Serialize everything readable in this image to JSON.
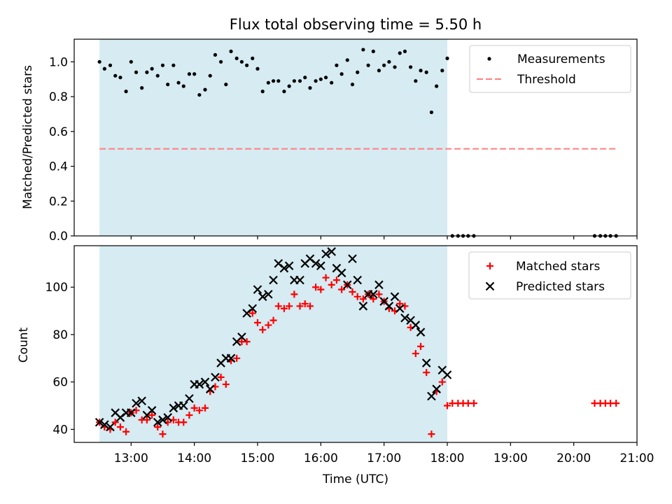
{
  "colors": {
    "shade": "#add8e6",
    "measurement": "#000000",
    "threshold": "#ff7f7f",
    "matched": "#ff0000",
    "predicted": "#000000"
  },
  "chart_data": [
    {
      "type": "scatter",
      "title": "Flux total observing time = 5.50 h",
      "xlabel": "",
      "ylabel": "Matched/Predicted stars",
      "xlim": [
        12.1,
        21.0
      ],
      "ylim": [
        0.0,
        1.13
      ],
      "yticks": [
        "0.0",
        "0.2",
        "0.4",
        "0.6",
        "0.8",
        "1.0"
      ],
      "observing_window": [
        12.5,
        18.0
      ],
      "threshold": {
        "name": "Threshold",
        "value": 0.5,
        "x_range": [
          12.5,
          20.67
        ]
      },
      "legend": [
        "Measurements",
        "Threshold"
      ],
      "series": [
        {
          "name": "Measurements",
          "x": [
            12.5,
            12.58,
            12.67,
            12.75,
            12.83,
            12.92,
            13.0,
            13.08,
            13.17,
            13.25,
            13.33,
            13.42,
            13.5,
            13.58,
            13.67,
            13.75,
            13.83,
            13.92,
            14.0,
            14.08,
            14.17,
            14.25,
            14.33,
            14.42,
            14.5,
            14.58,
            14.67,
            14.75,
            14.83,
            14.92,
            15.0,
            15.08,
            15.17,
            15.25,
            15.33,
            15.42,
            15.5,
            15.58,
            15.67,
            15.75,
            15.83,
            15.92,
            16.0,
            16.08,
            16.17,
            16.25,
            16.33,
            16.42,
            16.5,
            16.58,
            16.67,
            16.75,
            16.83,
            16.92,
            17.0,
            17.08,
            17.17,
            17.25,
            17.33,
            17.42,
            17.5,
            17.58,
            17.67,
            17.75,
            17.83,
            17.92,
            18.0,
            18.08,
            18.17,
            18.25,
            18.33,
            18.42,
            20.33,
            20.42,
            20.5,
            20.58,
            20.67
          ],
          "y": [
            1.0,
            0.96,
            0.98,
            0.92,
            0.91,
            0.83,
            1.0,
            0.94,
            0.85,
            0.94,
            0.96,
            0.92,
            0.98,
            0.87,
            0.98,
            0.88,
            0.86,
            0.93,
            0.93,
            0.81,
            0.84,
            0.92,
            1.04,
            1.0,
            0.87,
            1.06,
            1.02,
            1.0,
            0.98,
            1.02,
            0.96,
            0.83,
            0.88,
            0.89,
            0.89,
            0.83,
            0.86,
            0.89,
            0.89,
            0.91,
            0.85,
            0.89,
            0.9,
            0.91,
            0.88,
            0.98,
            0.93,
            1.01,
            0.87,
            0.94,
            1.07,
            0.98,
            1.06,
            0.95,
            0.98,
            1.0,
            0.97,
            1.05,
            1.06,
            0.97,
            0.89,
            0.95,
            0.94,
            0.71,
            0.86,
            0.95,
            1.02,
            0.0,
            0.0,
            0.0,
            0.0,
            0.0,
            0.0,
            0.0,
            0.0,
            0.0,
            0.0
          ]
        }
      ]
    },
    {
      "type": "scatter",
      "title": "",
      "xlabel": "Time (UTC)",
      "ylabel": "Count",
      "xlim": [
        12.1,
        21.0
      ],
      "ylim": [
        34.5,
        117.5
      ],
      "yticks": [
        "40",
        "60",
        "80",
        "100"
      ],
      "xticks": [
        "13:00",
        "14:00",
        "15:00",
        "16:00",
        "17:00",
        "18:00",
        "19:00",
        "20:00",
        "21:00"
      ],
      "observing_window": [
        12.5,
        18.0
      ],
      "legend": [
        "Matched stars",
        "Predicted stars"
      ],
      "series": [
        {
          "name": "Matched stars",
          "marker": "+",
          "x": [
            12.5,
            12.58,
            12.67,
            12.75,
            12.83,
            12.92,
            13.0,
            13.08,
            13.17,
            13.25,
            13.33,
            13.42,
            13.5,
            13.58,
            13.67,
            13.75,
            13.83,
            13.92,
            14.0,
            14.08,
            14.17,
            14.25,
            14.33,
            14.42,
            14.5,
            14.58,
            14.67,
            14.75,
            14.83,
            14.92,
            15.0,
            15.08,
            15.17,
            15.25,
            15.33,
            15.42,
            15.5,
            15.58,
            15.67,
            15.75,
            15.83,
            15.92,
            16.0,
            16.08,
            16.17,
            16.25,
            16.33,
            16.42,
            16.5,
            16.58,
            16.67,
            16.75,
            16.83,
            16.92,
            17.0,
            17.08,
            17.17,
            17.25,
            17.33,
            17.42,
            17.5,
            17.58,
            17.67,
            17.75,
            17.83,
            17.92,
            18.0,
            18.08,
            18.17,
            18.25,
            18.33,
            18.42,
            20.33,
            20.42,
            20.5,
            20.58,
            20.67
          ],
          "y": [
            43,
            41,
            40,
            43,
            41,
            39,
            47,
            48,
            44,
            44,
            46,
            41,
            38,
            43,
            44,
            43,
            43,
            46,
            49,
            48,
            49,
            56,
            58,
            62,
            59,
            69,
            70,
            77,
            77,
            89,
            85,
            82,
            84,
            86,
            92,
            91,
            92,
            97,
            92,
            93,
            92,
            100,
            99,
            104,
            101,
            103,
            99,
            101,
            98,
            96,
            95,
            97,
            95,
            97,
            94,
            91,
            90,
            93,
            92,
            83,
            72,
            75,
            64,
            38,
            56,
            60,
            50,
            51,
            51,
            51,
            51,
            51,
            51,
            51,
            51,
            51,
            51
          ]
        },
        {
          "name": "Predicted stars",
          "marker": "x",
          "x": [
            12.5,
            12.58,
            12.67,
            12.75,
            12.83,
            12.92,
            13.0,
            13.08,
            13.17,
            13.25,
            13.33,
            13.42,
            13.5,
            13.58,
            13.67,
            13.75,
            13.83,
            13.92,
            14.0,
            14.08,
            14.17,
            14.25,
            14.33,
            14.42,
            14.5,
            14.58,
            14.67,
            14.75,
            14.83,
            14.92,
            15.0,
            15.08,
            15.17,
            15.25,
            15.33,
            15.42,
            15.5,
            15.58,
            15.67,
            15.75,
            15.83,
            15.92,
            16.0,
            16.08,
            16.17,
            16.25,
            16.33,
            16.42,
            16.5,
            16.58,
            16.67,
            16.75,
            16.83,
            16.92,
            17.0,
            17.08,
            17.17,
            17.25,
            17.33,
            17.42,
            17.5,
            17.58,
            17.67,
            17.75,
            17.83,
            17.92,
            18.0
          ],
          "y": [
            43,
            42,
            41,
            47,
            45,
            47,
            47,
            51,
            52,
            46,
            48,
            43,
            44,
            45,
            49,
            50,
            50,
            53,
            59,
            59,
            60,
            57,
            62,
            68,
            70,
            70,
            77,
            79,
            89,
            91,
            99,
            96,
            97,
            103,
            110,
            108,
            109,
            103,
            103,
            110,
            112,
            110,
            109,
            114,
            115,
            108,
            106,
            101,
            112,
            103,
            92,
            97,
            97,
            101,
            94,
            92,
            96,
            91,
            87,
            86,
            84,
            81,
            68,
            54,
            57,
            65,
            63
          ]
        }
      ]
    }
  ]
}
